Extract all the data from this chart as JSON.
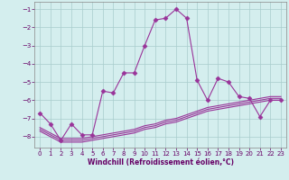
{
  "xlabel": "Windchill (Refroidissement éolien,°C)",
  "background_color": "#d4eeee",
  "grid_color": "#a8cccc",
  "line_color": "#993399",
  "xlim": [
    -0.5,
    23.5
  ],
  "ylim": [
    -8.6,
    -0.6
  ],
  "yticks": [
    -8,
    -7,
    -6,
    -5,
    -4,
    -3,
    -2,
    -1
  ],
  "xticks": [
    0,
    1,
    2,
    3,
    4,
    5,
    6,
    7,
    8,
    9,
    10,
    11,
    12,
    13,
    14,
    15,
    16,
    17,
    18,
    19,
    20,
    21,
    22,
    23
  ],
  "series1_x": [
    0,
    1,
    2,
    3,
    4,
    5,
    6,
    7,
    8,
    9,
    10,
    11,
    12,
    13,
    14,
    15,
    16,
    17,
    18,
    19,
    20,
    21,
    22,
    23
  ],
  "series1_y": [
    -6.7,
    -7.3,
    -8.2,
    -7.3,
    -7.9,
    -7.9,
    -5.5,
    -5.6,
    -4.5,
    -4.5,
    -3.0,
    -1.6,
    -1.5,
    -1.0,
    -1.5,
    -4.9,
    -6.0,
    -4.8,
    -5.0,
    -5.8,
    -5.9,
    -6.9,
    -6.0,
    -6.0
  ],
  "series2_x": [
    0,
    1,
    2,
    3,
    4,
    5,
    6,
    7,
    8,
    9,
    10,
    11,
    12,
    13,
    14,
    15,
    16,
    17,
    18,
    19,
    20,
    21,
    22,
    23
  ],
  "series2_y": [
    -7.5,
    -7.8,
    -8.1,
    -8.1,
    -8.1,
    -8.0,
    -7.9,
    -7.8,
    -7.7,
    -7.6,
    -7.4,
    -7.3,
    -7.1,
    -7.0,
    -6.8,
    -6.6,
    -6.4,
    -6.3,
    -6.2,
    -6.1,
    -6.0,
    -5.9,
    -5.8,
    -5.8
  ],
  "series3_x": [
    0,
    1,
    2,
    3,
    4,
    5,
    6,
    7,
    8,
    9,
    10,
    11,
    12,
    13,
    14,
    15,
    16,
    17,
    18,
    19,
    20,
    21,
    22,
    23
  ],
  "series3_y": [
    -7.6,
    -7.9,
    -8.2,
    -8.2,
    -8.2,
    -8.1,
    -8.0,
    -7.9,
    -7.8,
    -7.7,
    -7.5,
    -7.4,
    -7.2,
    -7.1,
    -6.9,
    -6.7,
    -6.5,
    -6.4,
    -6.3,
    -6.2,
    -6.1,
    -6.0,
    -5.9,
    -5.9
  ],
  "series4_x": [
    0,
    1,
    2,
    3,
    4,
    5,
    6,
    7,
    8,
    9,
    10,
    11,
    12,
    13,
    14,
    15,
    16,
    17,
    18,
    19,
    20,
    21,
    22,
    23
  ],
  "series4_y": [
    -7.7,
    -8.0,
    -8.3,
    -8.3,
    -8.3,
    -8.2,
    -8.1,
    -8.0,
    -7.9,
    -7.8,
    -7.6,
    -7.5,
    -7.3,
    -7.2,
    -7.0,
    -6.8,
    -6.6,
    -6.5,
    -6.4,
    -6.3,
    -6.2,
    -6.1,
    -6.0,
    -6.0
  ]
}
